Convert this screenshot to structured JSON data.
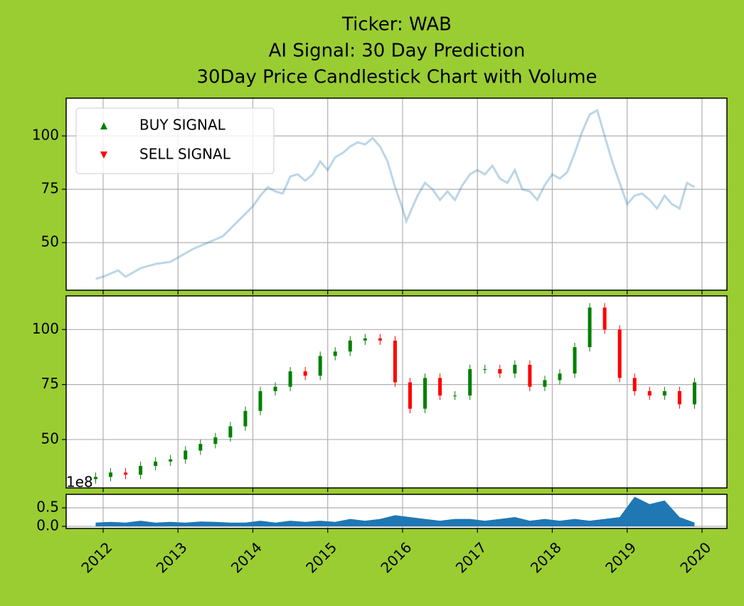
{
  "chart_data": [
    {
      "type": "line",
      "title": [
        "Ticker: WAB",
        "AI Signal: 30 Day Prediction",
        "30Day Price Candlestick Chart with Volume"
      ],
      "x": [
        2011.9,
        2012.0,
        2012.2,
        2012.3,
        2012.5,
        2012.7,
        2012.9,
        2013.0,
        2013.2,
        2013.4,
        2013.6,
        2013.8,
        2014.0,
        2014.1,
        2014.2,
        2014.3,
        2014.4,
        2014.5,
        2014.6,
        2014.7,
        2014.8,
        2014.9,
        2015.0,
        2015.1,
        2015.2,
        2015.3,
        2015.4,
        2015.5,
        2015.6,
        2015.7,
        2015.8,
        2015.9,
        2016.0,
        2016.05,
        2016.2,
        2016.3,
        2016.4,
        2016.5,
        2016.6,
        2016.7,
        2016.8,
        2016.9,
        2017.0,
        2017.1,
        2017.2,
        2017.3,
        2017.4,
        2017.5,
        2017.6,
        2017.7,
        2017.8,
        2017.9,
        2018.0,
        2018.1,
        2018.2,
        2018.3,
        2018.4,
        2018.5,
        2018.6,
        2018.7,
        2018.8,
        2018.9,
        2019.0,
        2019.1,
        2019.2,
        2019.3,
        2019.4,
        2019.5,
        2019.6,
        2019.7,
        2019.8,
        2019.9
      ],
      "values": [
        33,
        34,
        37,
        34,
        38,
        40,
        41,
        43,
        47,
        50,
        53,
        60,
        67,
        72,
        76,
        74,
        73,
        81,
        82,
        79,
        82,
        88,
        84,
        90,
        92,
        95,
        97,
        96,
        99,
        95,
        88,
        76,
        66,
        60,
        72,
        78,
        75,
        70,
        74,
        70,
        77,
        82,
        84,
        82,
        86,
        80,
        78,
        84,
        75,
        74,
        70,
        77,
        82,
        80,
        83,
        92,
        102,
        110,
        112,
        100,
        88,
        78,
        68,
        72,
        73,
        70,
        66,
        72,
        68,
        66,
        78,
        76
      ],
      "color": "#1f77b4",
      "alpha": 0.3,
      "legend": [
        {
          "name": "BUY SIGNAL",
          "color": "green",
          "marker": "up"
        },
        {
          "name": "SELL SIGNAL",
          "color": "red",
          "marker": "down"
        }
      ],
      "legend_loc": "upper left",
      "xlim": [
        2011.506,
        2020.333
      ],
      "xticks": [
        2012,
        2013,
        2014,
        2015,
        2016,
        2017,
        2018,
        2019,
        2020
      ],
      "ylim": [
        27.7,
        117.7
      ],
      "yticks": [
        50,
        75,
        100
      ],
      "grid": true
    },
    {
      "type": "candlestick",
      "x": [
        2011.9,
        2012.1,
        2012.3,
        2012.5,
        2012.7,
        2012.9,
        2013.1,
        2013.3,
        2013.5,
        2013.7,
        2013.9,
        2014.1,
        2014.3,
        2014.5,
        2014.7,
        2014.9,
        2015.1,
        2015.3,
        2015.5,
        2015.7,
        2015.9,
        2016.1,
        2016.3,
        2016.5,
        2016.7,
        2016.9,
        2017.1,
        2017.3,
        2017.5,
        2017.7,
        2017.9,
        2018.1,
        2018.3,
        2018.5,
        2018.7,
        2018.9,
        2019.1,
        2019.3,
        2019.5,
        2019.7,
        2019.9
      ],
      "open": [
        32,
        33,
        35,
        34,
        38,
        40,
        41,
        45,
        48,
        51,
        56,
        63,
        72,
        74,
        81,
        79,
        88,
        90,
        95,
        96,
        95,
        76,
        64,
        78,
        70,
        70,
        82,
        82,
        80,
        84,
        74,
        77,
        80,
        92,
        110,
        100,
        78,
        72,
        70,
        72,
        66
      ],
      "close": [
        33,
        35,
        34,
        38,
        40,
        41,
        45,
        48,
        51,
        56,
        63,
        72,
        74,
        81,
        79,
        88,
        90,
        95,
        96,
        95,
        76,
        64,
        78,
        70,
        70,
        82,
        82,
        80,
        84,
        74,
        77,
        80,
        92,
        110,
        100,
        78,
        72,
        70,
        72,
        66,
        76
      ],
      "high": [
        35,
        37,
        37,
        40,
        42,
        43,
        47,
        50,
        53,
        58,
        65,
        74,
        76,
        83,
        83,
        90,
        92,
        97,
        98,
        98,
        97,
        78,
        80,
        80,
        72,
        84,
        84,
        84,
        86,
        86,
        79,
        82,
        94,
        112,
        112,
        102,
        80,
        74,
        74,
        74,
        78
      ],
      "low": [
        30,
        31,
        32,
        32,
        36,
        38,
        39,
        43,
        46,
        49,
        54,
        61,
        70,
        72,
        77,
        77,
        86,
        88,
        93,
        93,
        74,
        62,
        62,
        68,
        68,
        68,
        80,
        78,
        78,
        72,
        72,
        75,
        78,
        90,
        98,
        76,
        70,
        68,
        68,
        64,
        64
      ],
      "up_color": "green",
      "down_color": "red",
      "xlim": [
        2011.506,
        2020.333
      ],
      "xticks": [
        2012,
        2013,
        2014,
        2015,
        2016,
        2017,
        2018,
        2019,
        2020
      ],
      "ylim": [
        28,
        115.3
      ],
      "yticks": [
        50,
        75,
        100
      ],
      "grid": true
    },
    {
      "type": "area",
      "x": [
        2011.9,
        2012.1,
        2012.3,
        2012.5,
        2012.7,
        2012.9,
        2013.1,
        2013.3,
        2013.5,
        2013.7,
        2013.9,
        2014.1,
        2014.3,
        2014.5,
        2014.7,
        2014.9,
        2015.1,
        2015.3,
        2015.5,
        2015.7,
        2015.9,
        2016.1,
        2016.3,
        2016.5,
        2016.7,
        2016.9,
        2017.1,
        2017.3,
        2017.5,
        2017.7,
        2017.9,
        2018.1,
        2018.3,
        2018.5,
        2018.7,
        2018.9,
        2019.1,
        2019.3,
        2019.5,
        2019.7,
        2019.9
      ],
      "values": [
        0.1,
        0.12,
        0.1,
        0.15,
        0.1,
        0.12,
        0.1,
        0.13,
        0.12,
        0.1,
        0.1,
        0.15,
        0.1,
        0.15,
        0.12,
        0.15,
        0.12,
        0.2,
        0.15,
        0.2,
        0.3,
        0.25,
        0.2,
        0.15,
        0.2,
        0.2,
        0.15,
        0.2,
        0.25,
        0.15,
        0.2,
        0.15,
        0.2,
        0.15,
        0.2,
        0.25,
        0.8,
        0.6,
        0.7,
        0.25,
        0.1
      ],
      "color": "#1f77b4",
      "offset_label": "1e8",
      "xlim": [
        2011.506,
        2020.333
      ],
      "xticks": [
        2012,
        2013,
        2014,
        2015,
        2016,
        2017,
        2018,
        2019,
        2020
      ],
      "ylim": [
        -0.058,
        0.865
      ],
      "yticks": [
        {
          "value": 0.0,
          "label": "0.0"
        },
        {
          "value": 0.5,
          "label": "0.5"
        }
      ],
      "grid": true
    }
  ]
}
